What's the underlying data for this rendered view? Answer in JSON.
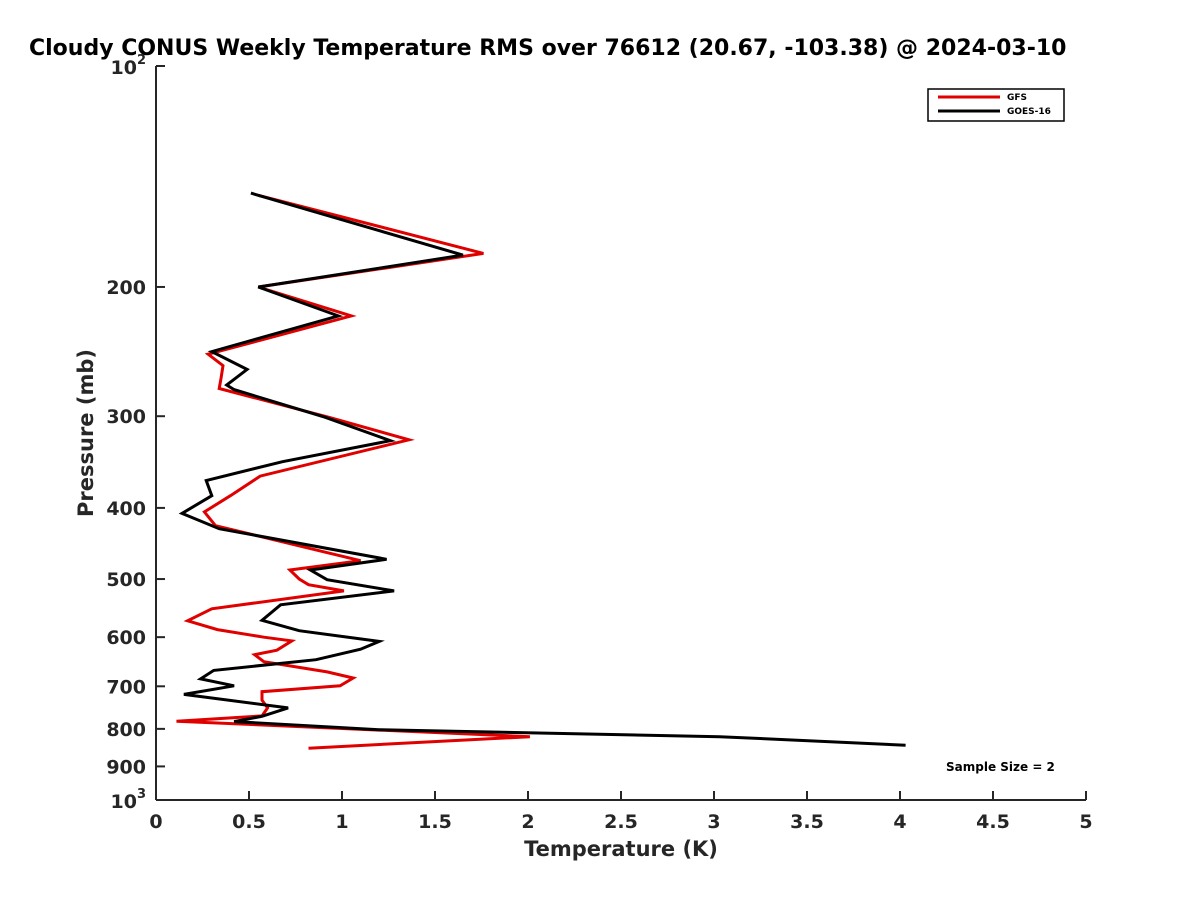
{
  "chart_data": {
    "type": "line",
    "title": "Cloudy CONUS Weekly Temperature RMS over 76612 (20.67, -103.38) @ 2024-03-10",
    "xlabel": "Temperature (K)",
    "ylabel": "Pressure (mb)",
    "xlim": [
      0,
      5
    ],
    "ylim": [
      100,
      1000
    ],
    "y_scale": "log",
    "y_reversed": true,
    "grid": false,
    "legend_position": "top-right",
    "x_ticks": [
      "0",
      "0.5",
      "1",
      "1.5",
      "2",
      "2.5",
      "3",
      "3.5",
      "4",
      "4.5",
      "5"
    ],
    "y_ticks": [
      {
        "value": 100,
        "label": "10",
        "sup": "2"
      },
      {
        "value": 200,
        "label": "200",
        "sup": ""
      },
      {
        "value": 300,
        "label": "300",
        "sup": ""
      },
      {
        "value": 400,
        "label": "400",
        "sup": ""
      },
      {
        "value": 500,
        "label": "500",
        "sup": ""
      },
      {
        "value": 600,
        "label": "600",
        "sup": ""
      },
      {
        "value": 700,
        "label": "700",
        "sup": ""
      },
      {
        "value": 800,
        "label": "800",
        "sup": ""
      },
      {
        "value": 900,
        "label": "900",
        "sup": ""
      },
      {
        "value": 1000,
        "label": "10",
        "sup": "3"
      }
    ],
    "annotation": "Sample Size = 2",
    "series": [
      {
        "name": "GFS",
        "color": "#e00000",
        "points": [
          [
            0.55,
            150
          ],
          [
            1.76,
            180
          ],
          [
            0.55,
            200
          ],
          [
            1.05,
            219
          ],
          [
            0.28,
            247
          ],
          [
            0.36,
            256
          ],
          [
            0.35,
            266
          ],
          [
            0.34,
            275
          ],
          [
            0.93,
            301
          ],
          [
            1.36,
            323
          ],
          [
            0.56,
            362
          ],
          [
            0.4,
            385
          ],
          [
            0.26,
            405
          ],
          [
            0.32,
            423
          ],
          [
            1.1,
            472
          ],
          [
            0.72,
            486
          ],
          [
            0.77,
            500
          ],
          [
            0.82,
            509
          ],
          [
            1.01,
            519
          ],
          [
            0.3,
            549
          ],
          [
            0.17,
            570
          ],
          [
            0.33,
            586
          ],
          [
            0.58,
            600
          ],
          [
            0.73,
            607
          ],
          [
            0.65,
            625
          ],
          [
            0.53,
            634
          ],
          [
            0.58,
            648
          ],
          [
            0.92,
            669
          ],
          [
            1.06,
            682
          ],
          [
            0.99,
            699
          ],
          [
            0.57,
            712
          ],
          [
            0.57,
            731
          ],
          [
            0.6,
            749
          ],
          [
            0.57,
            768
          ],
          [
            0.11,
            781
          ],
          [
            2.01,
            820
          ],
          [
            0.82,
            850
          ]
        ]
      },
      {
        "name": "GOES-16",
        "color": "#000000",
        "points": [
          [
            0.51,
            149
          ],
          [
            1.65,
            181
          ],
          [
            0.55,
            200
          ],
          [
            0.98,
            219
          ],
          [
            0.3,
            245
          ],
          [
            0.49,
            259
          ],
          [
            0.38,
            272
          ],
          [
            0.42,
            276
          ],
          [
            0.91,
            301
          ],
          [
            1.26,
            324
          ],
          [
            0.68,
            346
          ],
          [
            0.27,
            367
          ],
          [
            0.3,
            385
          ],
          [
            0.14,
            407
          ],
          [
            0.34,
            427
          ],
          [
            1.24,
            470
          ],
          [
            0.83,
            486
          ],
          [
            0.92,
            501
          ],
          [
            1.28,
            519
          ],
          [
            0.67,
            542
          ],
          [
            0.57,
            569
          ],
          [
            0.77,
            588
          ],
          [
            1.2,
            608
          ],
          [
            1.1,
            623
          ],
          [
            0.86,
            644
          ],
          [
            0.31,
            666
          ],
          [
            0.24,
            684
          ],
          [
            0.42,
            699
          ],
          [
            0.15,
            718
          ],
          [
            0.71,
            749
          ],
          [
            0.57,
            769
          ],
          [
            0.42,
            782
          ],
          [
            1.2,
            802
          ],
          [
            3.03,
            820
          ],
          [
            4.03,
            842
          ]
        ]
      }
    ]
  }
}
